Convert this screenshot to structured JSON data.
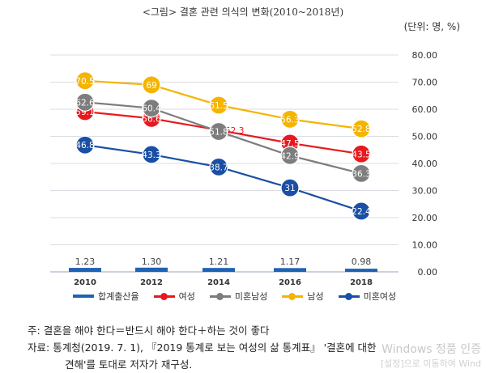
{
  "title": "<그림> 결혼 관련 의식의 변화(2010~2018년)",
  "unit": "(단위: 명, %)",
  "chart_data": {
    "type": "line",
    "x": [
      "2010",
      "2012",
      "2014",
      "2016",
      "2018"
    ],
    "ylim": [
      0,
      80
    ],
    "yticks": [
      "0.00",
      "10.00",
      "20.00",
      "30.00",
      "40.00",
      "50.00",
      "60.00",
      "70.00",
      "80.00"
    ],
    "grid": true,
    "legend_position": "bottom",
    "bar_series": {
      "name": "합계출산율",
      "values": [
        1.23,
        1.3,
        1.21,
        1.17,
        0.98
      ],
      "labels": [
        "1.23",
        "1.30",
        "1.21",
        "1.17",
        "0.98"
      ],
      "color": "#1f63b5"
    },
    "series": [
      {
        "name": "여성",
        "values": [
          59.1,
          56.6,
          52.3,
          47.5,
          43.5
        ],
        "labels": [
          "59.1",
          "56.6",
          "52.3",
          "47.5",
          "43.5"
        ],
        "color": "#e8191e"
      },
      {
        "name": "미혼남성",
        "values": [
          62.6,
          60.4,
          51.8,
          42.9,
          36.3
        ],
        "labels": [
          "62.6",
          "60.4",
          "51.8",
          "42.9",
          "36.3"
        ],
        "color": "#7d7d7d"
      },
      {
        "name": "남성",
        "values": [
          70.5,
          69.0,
          61.5,
          56.3,
          52.8
        ],
        "labels": [
          "70.5",
          "69",
          "61.5",
          "56.3",
          "52.8"
        ],
        "color": "#f5b400"
      },
      {
        "name": "미혼여성",
        "values": [
          46.8,
          43.3,
          38.7,
          31.0,
          22.4
        ],
        "labels": [
          "46.8",
          "43.3",
          "38.7",
          "31",
          "22.4"
        ],
        "color": "#1a4fa3"
      }
    ]
  },
  "legend": [
    {
      "name": "합계출산율",
      "kind": "bar",
      "color": "#1f63b5"
    },
    {
      "name": "여성",
      "kind": "line",
      "color": "#e8191e"
    },
    {
      "name": "미혼남성",
      "kind": "line",
      "color": "#7d7d7d"
    },
    {
      "name": "남성",
      "kind": "line",
      "color": "#f5b400"
    },
    {
      "name": "미혼여성",
      "kind": "line",
      "color": "#1a4fa3"
    }
  ],
  "notes": {
    "note_label": "주: ",
    "note_text": "결혼을 해야 한다＝반드시 해야 한다＋하는 것이 좋다",
    "source_label": "자료: ",
    "source_text": "통계청(2019. 7. 1), 『2019 통계로 보는 여성의 삶 통계표』 '결혼에 대한",
    "source_text2": "견해'를 토대로 저자가 재구성."
  },
  "watermark": {
    "line1": "Windows 정품 인증",
    "line2": "[설정]으로 이동하여 Wind"
  }
}
